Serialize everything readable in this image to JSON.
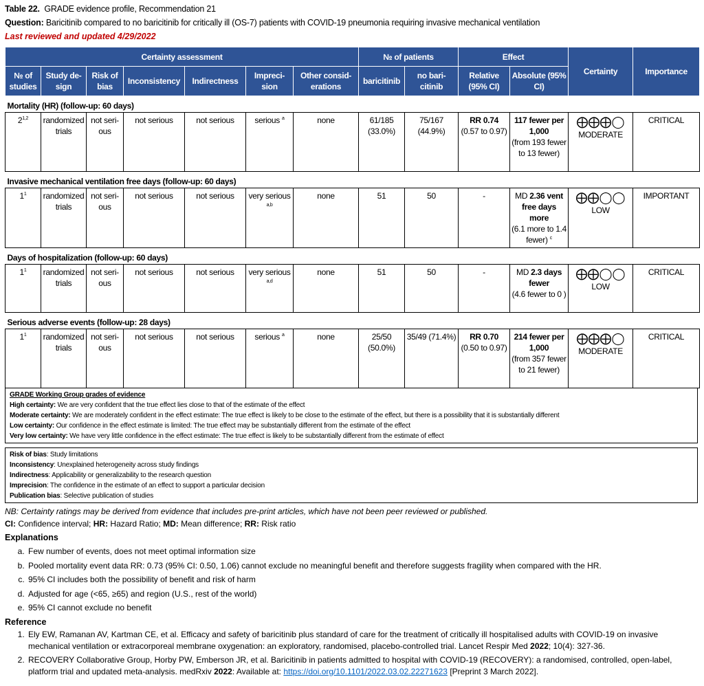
{
  "header": {
    "table_label": "Table 22.",
    "table_title": "GRADE evidence profile, Recommendation 21",
    "question_label": "Question:",
    "question": "Baricitinib compared to no baricitinib for critically ill (OS-7) patients with COVID-19 pneumonia requiring invasive mechanical ventilation",
    "reviewed": "Last reviewed and updated 4/29/2022"
  },
  "table": {
    "group_headers": {
      "certainty_assessment": "Certainty assessment",
      "patients": "№ of patients",
      "effect": "Effect",
      "certainty": "Certainty",
      "importance": "Importance"
    },
    "columns": [
      "№ of studies",
      "Study de-sign",
      "Risk of bias",
      "Inconsistency",
      "Indirectness",
      "Impreci-sion",
      "Other consid-erations",
      "baricitinib",
      "no bari-citinib",
      "Relative (95% CI)",
      "Absolute (95% CI)"
    ],
    "outcomes": [
      {
        "label": "Mortality (HR) (follow-up: 60 days)",
        "studies": "2",
        "studies_sup": "1,2",
        "design": "randomized trials",
        "risk_of_bias": "not seri-ous",
        "inconsistency": "not serious",
        "indirectness": "not serious",
        "imprecision": "serious",
        "imprecision_sup": "a",
        "other": "none",
        "baricitinib": "61/185 (33.0%)",
        "no_baricitinib": "75/167 (44.9%)",
        "relative_bold": "RR 0.74",
        "relative": "(0.57 to 0.97)",
        "absolute_prefix": "",
        "absolute_bold": "117 fewer per 1,000",
        "absolute": "(from 193 fewer to 13 fewer)",
        "absolute_sup": "",
        "certainty_symbols": "⨁⨁⨁◯",
        "certainty": "MODERATE",
        "importance": "CRITICAL"
      },
      {
        "label": "Invasive mechanical ventilation free days (follow-up: 60 days)",
        "studies": "1",
        "studies_sup": "1",
        "design": "randomized trials",
        "risk_of_bias": "not seri-ous",
        "inconsistency": "not serious",
        "indirectness": "not serious",
        "imprecision": "very serious",
        "imprecision_sup": "a,b",
        "other": "none",
        "baricitinib": "51",
        "no_baricitinib": "50",
        "relative_bold": "",
        "relative": "-",
        "absolute_prefix": "MD ",
        "absolute_bold": "2.36 vent free days more",
        "absolute": "(6.1 more to 1.4 fewer)",
        "absolute_sup": "c",
        "certainty_symbols": "⨁⨁◯◯",
        "certainty": "LOW",
        "importance": "IMPORTANT"
      },
      {
        "label": "Days of hospitalization (follow-up: 60 days)",
        "studies": "1",
        "studies_sup": "1",
        "design": "randomized trials",
        "risk_of_bias": "not seri-ous",
        "inconsistency": "not serious",
        "indirectness": "not serious",
        "imprecision": "very serious",
        "imprecision_sup": "a,d",
        "other": "none",
        "baricitinib": "51",
        "no_baricitinib": "50",
        "relative_bold": "",
        "relative": "-",
        "absolute_prefix": "MD ",
        "absolute_bold": "2.3 days fewer",
        "absolute": "(4.6 fewer to 0 )",
        "absolute_sup": "",
        "certainty_symbols": "⨁⨁◯◯",
        "certainty": "LOW",
        "importance": "CRITICAL"
      },
      {
        "label": "Serious adverse events (follow-up: 28 days)",
        "studies": "1",
        "studies_sup": "1",
        "design": "randomized trials",
        "risk_of_bias": "not seri-ous",
        "inconsistency": "not serious",
        "indirectness": "not serious",
        "imprecision": "serious",
        "imprecision_sup": "a",
        "other": "none",
        "baricitinib": "25/50 (50.0%)",
        "no_baricitinib": "35/49 (71.4%)",
        "relative_bold": "RR 0.70",
        "relative": "(0.50 to 0.97)",
        "absolute_prefix": "",
        "absolute_bold": "214 fewer per 1,000",
        "absolute": "(from 357 fewer to 21 fewer)",
        "absolute_sup": "",
        "certainty_symbols": "⨁⨁⨁◯",
        "certainty": "MODERATE",
        "importance": "CRITICAL"
      }
    ]
  },
  "grade": {
    "title": "GRADE Working Group grades of evidence",
    "items": [
      {
        "term": "High certainty:",
        "text": " We are very confident that the true effect lies close to that of the estimate of the effect"
      },
      {
        "term": "Moderate certainty:",
        "text": " We are moderately confident in the effect estimate: The true effect is likely to be close to the estimate of the effect, but there is a possibility that it is substantially different"
      },
      {
        "term": "Low certainty:",
        "text": " Our confidence in the effect estimate is limited: The true effect may be substantially different from the estimate of the effect"
      },
      {
        "term": "Very low certainty:",
        "text": " We have very little confidence in the effect estimate: The true effect is likely to be substantially different from the estimate of effect"
      }
    ]
  },
  "definitions": [
    {
      "term": "Risk of bias",
      "text": ": Study limitations"
    },
    {
      "term": "Inconsistency",
      "text": ": Unexplained heterogeneity across study findings"
    },
    {
      "term": "Indirectness",
      "text": ": Applicability or generalizability to the research question"
    },
    {
      "term": "Imprecision",
      "text": ": The confidence in the estimate of an effect to support a particular decision"
    },
    {
      "term": "Publication bias",
      "text": ": Selective publication of studies"
    }
  ],
  "nb": "NB: Certainty ratings may be derived from evidence that includes pre-print articles, which have not been peer reviewed or published.",
  "abbrev": [
    {
      "term": "CI:",
      "text": " Confidence interval; "
    },
    {
      "term": "HR:",
      "text": " Hazard Ratio; "
    },
    {
      "term": "MD:",
      "text": " Mean difference; "
    },
    {
      "term": "RR:",
      "text": " Risk ratio"
    }
  ],
  "explanations": {
    "title": "Explanations",
    "items": [
      "Few number of events, does not meet optimal information size",
      "Pooled mortality event data RR: 0.73 (95% CI: 0.50, 1.06) cannot exclude no meaningful benefit and therefore suggests fragility when compared with the HR.",
      "95% CI includes both the possibility of benefit and risk of harm",
      "Adjusted for age (<65, ≥65) and region (U.S., rest of the world)",
      "95% CI cannot exclude no benefit"
    ]
  },
  "reference": {
    "title": "Reference",
    "items": [
      {
        "text": "Ely EW, Ramanan AV, Kartman CE, et al. Efficacy and safety of baricitinib plus standard of care for the treatment of critically ill hospitalised adults with COVID-19 on invasive mechanical ventilation or extracorporeal membrane oxygenation: an exploratory, randomised, placebo-controlled trial. Lancet Respir Med ",
        "year": "2022",
        "after": "; 10(4): 327-36.",
        "link": "",
        "tail": ""
      },
      {
        "text": "RECOVERY Collaborative Group, Horby PW, Emberson JR, et al. Baricitinib in patients admitted to hospital with COVID-19 (RECOVERY): a randomised, controlled, open-label, platform trial and updated meta-analysis. medRxiv ",
        "year": "2022",
        "after": ": Available at: ",
        "link": "https://doi.org/10.1101/2022.03.02.22271623",
        "tail": " [Preprint 3 March 2022]."
      }
    ]
  }
}
